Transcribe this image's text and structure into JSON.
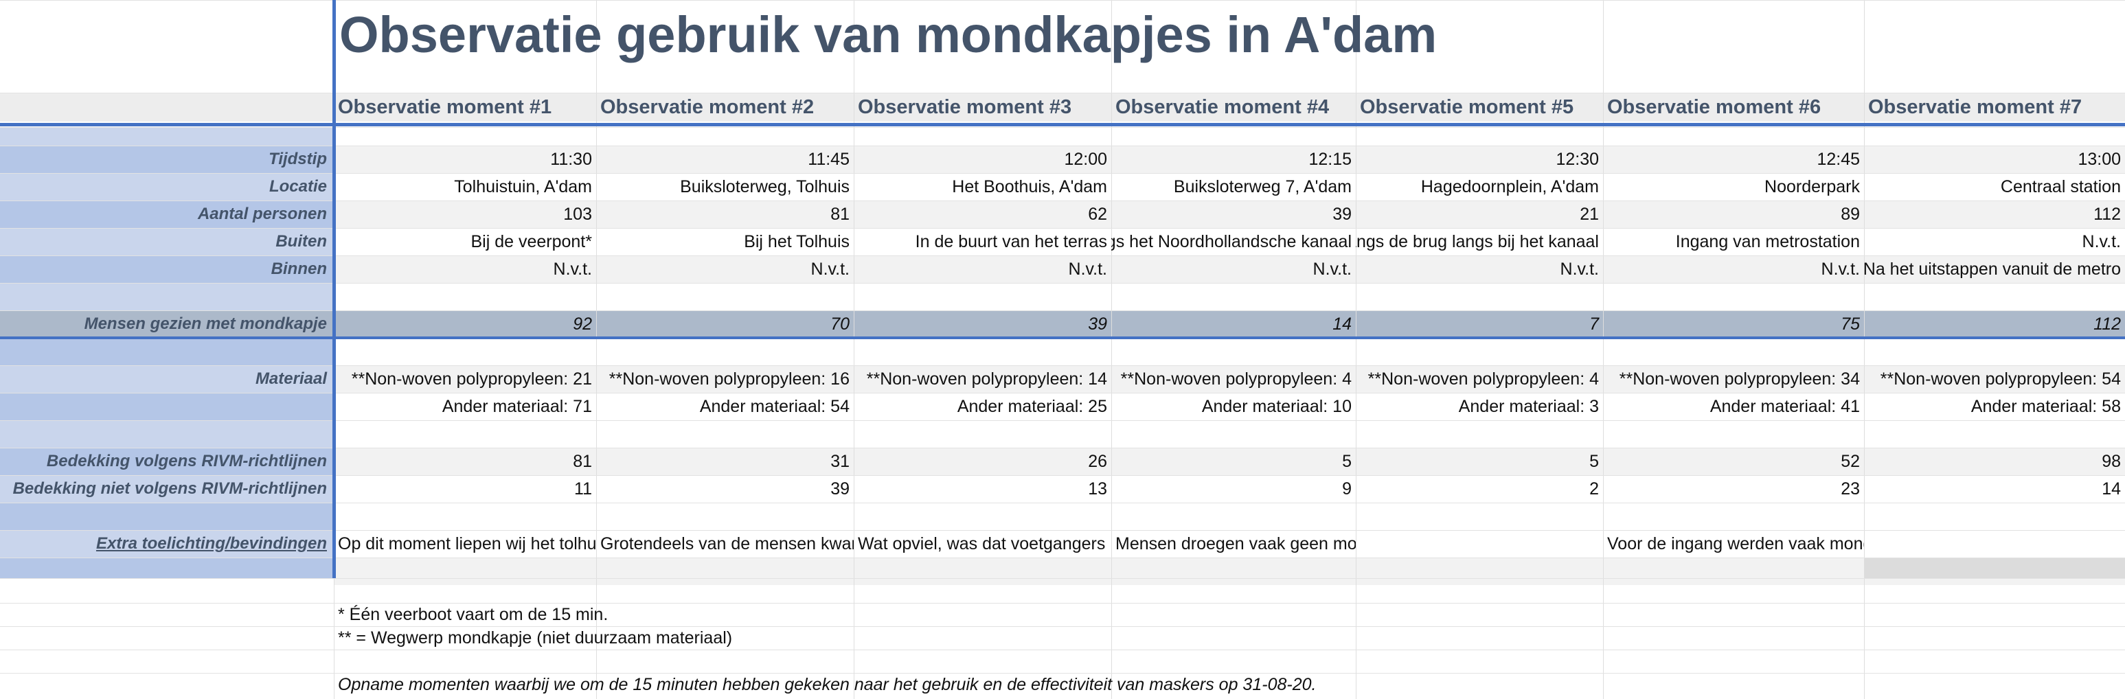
{
  "title": "Observatie gebruik van mondkapjes in A'dam",
  "colors": {
    "title": "#44546a",
    "accent_line": "#4472c4",
    "label_fill": "#b4c6e7",
    "summary_fill": "#acb9ca"
  },
  "columns": [
    {
      "header": "Observatie moment #1",
      "tijdstip": "11:30",
      "locatie": "Tolhuistuin, A'dam",
      "aantal": "103",
      "buiten": "Bij de veerpont*",
      "binnen": "N.v.t.",
      "mondkapje": "92",
      "materiaal_nonwoven": "**Non-woven polypropyleen: 21",
      "materiaal_ander": "Ander materiaal: 71",
      "bedekking_volgens": "81",
      "bedekking_niet": "11",
      "toelichting": "Op dit moment liepen wij het tolhuistuin terrein op en af"
    },
    {
      "header": "Observatie moment #2",
      "tijdstip": "11:45",
      "locatie": "Buiksloterweg, Tolhuis",
      "aantal": "81",
      "buiten": "Bij het Tolhuis",
      "binnen": "N.v.t.",
      "mondkapje": "70",
      "materiaal_nonwoven": "**Non-woven polypropyleen: 16",
      "materiaal_ander": "Ander materiaal: 54",
      "bedekking_volgens": "31",
      "bedekking_niet": "39",
      "toelichting": "Grotendeels van de mensen kwamen van de pont af"
    },
    {
      "header": "Observatie moment #3",
      "tijdstip": "12:00",
      "locatie": "Het Boothuis, A'dam",
      "aantal": "62",
      "buiten": "In de buurt van het terras",
      "binnen": "N.v.t.",
      "mondkapje": "39",
      "materiaal_nonwoven": "**Non-woven polypropyleen: 14",
      "materiaal_ander": "Ander materiaal: 25",
      "bedekking_volgens": "26",
      "bedekking_niet": "13",
      "toelichting": "Wat opviel, was dat voetgangers het mondkapje afdeden"
    },
    {
      "header": "Observatie moment #4",
      "tijdstip": "12:15",
      "locatie": "Buiksloterweg 7, A'dam",
      "aantal": "39",
      "buiten": "Langs het Noordhollandsche kanaal",
      "binnen": "N.v.t.",
      "mondkapje": "14",
      "materiaal_nonwoven": "**Non-woven polypropyleen: 4",
      "materiaal_ander": "Ander materiaal: 10",
      "bedekking_volgens": "5",
      "bedekking_niet": "9",
      "toelichting": "Mensen droegen vaak geen mondkap, dit was hier echter ook niet verplicht"
    },
    {
      "header": "Observatie moment #5",
      "tijdstip": "12:30",
      "locatie": "Hagedoornplein, A'dam",
      "aantal": "21",
      "buiten": "Langs de brug langs bij het kanaal",
      "binnen": "N.v.t.",
      "mondkapje": "7",
      "materiaal_nonwoven": "**Non-woven polypropyleen: 4",
      "materiaal_ander": "Ander materiaal: 3",
      "bedekking_volgens": "5",
      "bedekking_niet": "2",
      "toelichting": ""
    },
    {
      "header": "Observatie moment #6",
      "tijdstip": "12:45",
      "locatie": "Noorderpark",
      "aantal": "89",
      "buiten": "Ingang van metrostation",
      "binnen": "N.v.t.",
      "mondkapje": "75",
      "materiaal_nonwoven": "**Non-woven polypropyleen: 34",
      "materiaal_ander": "Ander materiaal: 41",
      "bedekking_volgens": "52",
      "bedekking_niet": "23",
      "toelichting": "Voor de ingang werden vaak mondkapjes op en af gedaan. Grotendeels"
    },
    {
      "header": "Observatie moment #7",
      "tijdstip": "13:00",
      "locatie": "Centraal station",
      "aantal": "112",
      "buiten": "N.v.t.",
      "binnen": "Na het uitstappen vanuit de metro",
      "mondkapje": "112",
      "materiaal_nonwoven": "**Non-woven polypropyleen: 54",
      "materiaal_ander": "Ander materiaal: 58",
      "bedekking_volgens": "98",
      "bedekking_niet": "14",
      "toelichting": ""
    }
  ],
  "row_labels": {
    "tijdstip": "Tijdstip",
    "locatie": "Locatie",
    "aantal": "Aantal personen",
    "buiten": "Buiten",
    "binnen": "Binnen",
    "mondkapje": "Mensen gezien met mondkapje",
    "materiaal": "Materiaal",
    "bedekking_volgens": "Bedekking volgens RIVM-richtlijnen",
    "bedekking_niet": "Bedekking niet volgens RIVM-richtlijnen",
    "toelichting": "Extra toelichting/bevindingen"
  },
  "footnotes": {
    "veerboot": "* Één veerboot vaart om de 15 min.",
    "wegwerp": "** = Wegwerp mondkapje (niet duurzaam materiaal)",
    "opname": "Opname momenten waarbij we om de 15 minuten hebben gekeken naar het gebruik en de effectiviteit van maskers op 31-08-20."
  }
}
